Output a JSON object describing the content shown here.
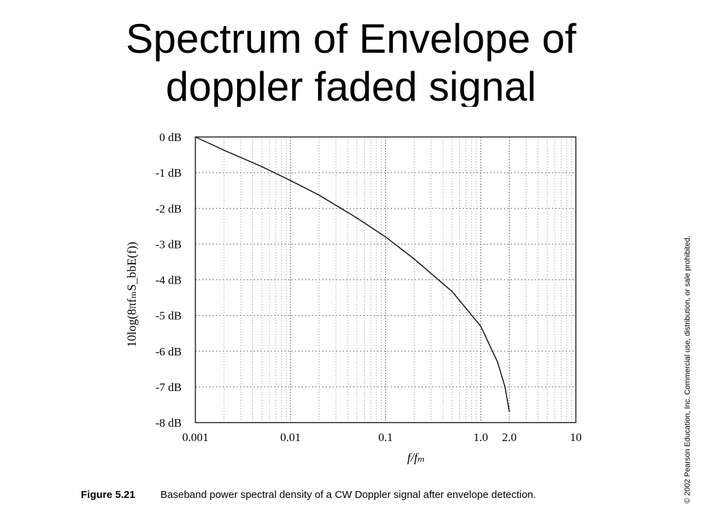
{
  "slide_title": "Spectrum of Envelope of doppler faded signal",
  "chart_data": {
    "type": "line",
    "x_scale": "log",
    "x_label": "f/fₘ",
    "y_label": "10log(8πfₘS_bbE(f))",
    "x": [
      0.001,
      0.002,
      0.005,
      0.01,
      0.02,
      0.05,
      0.1,
      0.2,
      0.5,
      1,
      1.5,
      1.8,
      2
    ],
    "series": [
      {
        "color": "#111111",
        "values": [
          0,
          -0.37,
          -0.83,
          -1.22,
          -1.63,
          -2.27,
          -2.8,
          -3.42,
          -4.33,
          -5.3,
          -6.3,
          -7.0,
          -7.7
        ]
      }
    ],
    "xlim": [
      0.001,
      10
    ],
    "ylim": [
      -8,
      0
    ],
    "xticks": [
      0.001,
      0.01,
      0.1,
      {
        "value": 1,
        "label": "1.0"
      },
      {
        "value": 2,
        "label": "2.0"
      },
      10
    ],
    "x_minor_grid": [
      0.002,
      0.003,
      0.004,
      0.005,
      0.006,
      0.007,
      0.008,
      0.009,
      0.02,
      0.03,
      0.04,
      0.05,
      0.06,
      0.07,
      0.08,
      0.09,
      0.2,
      0.3,
      0.4,
      0.5,
      0.6,
      0.7,
      0.8,
      0.9,
      3,
      4,
      5,
      6,
      7,
      8,
      9
    ],
    "yticks": [
      {
        "value": 0,
        "label": "0 dB"
      },
      {
        "value": -1,
        "label": "-1 dB"
      },
      {
        "value": -2,
        "label": "-2 dB"
      },
      {
        "value": -3,
        "label": "-3 dB"
      },
      {
        "value": -4,
        "label": "-4 dB"
      },
      {
        "value": -5,
        "label": "-5 dB"
      },
      {
        "value": -6,
        "label": "-6 dB"
      },
      {
        "value": -7,
        "label": "-7 dB"
      },
      {
        "value": -8,
        "label": "-8 dB"
      }
    ],
    "grid": true
  },
  "caption": {
    "label": "Figure 5.21",
    "text": "Baseband power spectral density of a CW Doppler signal after envelope detection."
  },
  "copyright": "© 2002 Pearson Education, Inc. Commercial use, distribution, or sale prohibited."
}
